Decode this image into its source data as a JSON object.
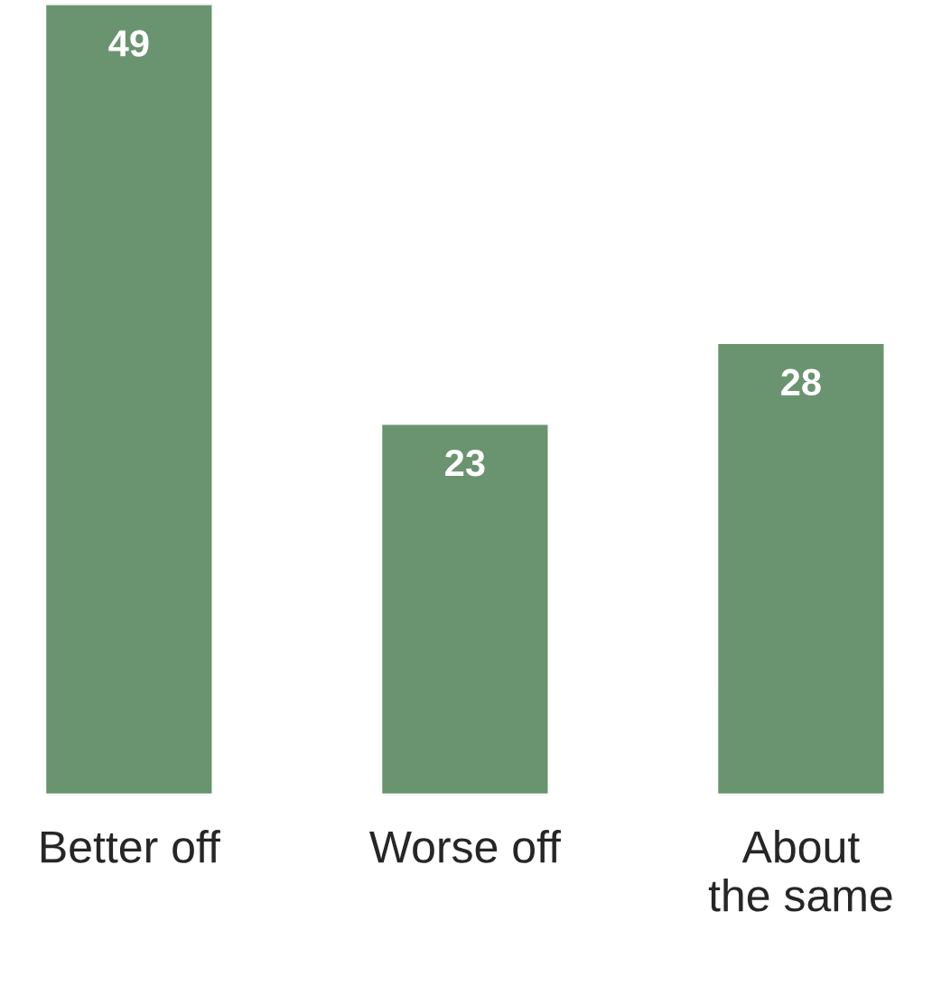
{
  "chart_data": {
    "type": "bar",
    "categories": [
      "Better off",
      "Worse off",
      "About\nthe same"
    ],
    "values": [
      49,
      23,
      28
    ],
    "color": "#6a9470",
    "data_labels": true,
    "grid": false,
    "legend": false,
    "tick_labels": "x"
  }
}
